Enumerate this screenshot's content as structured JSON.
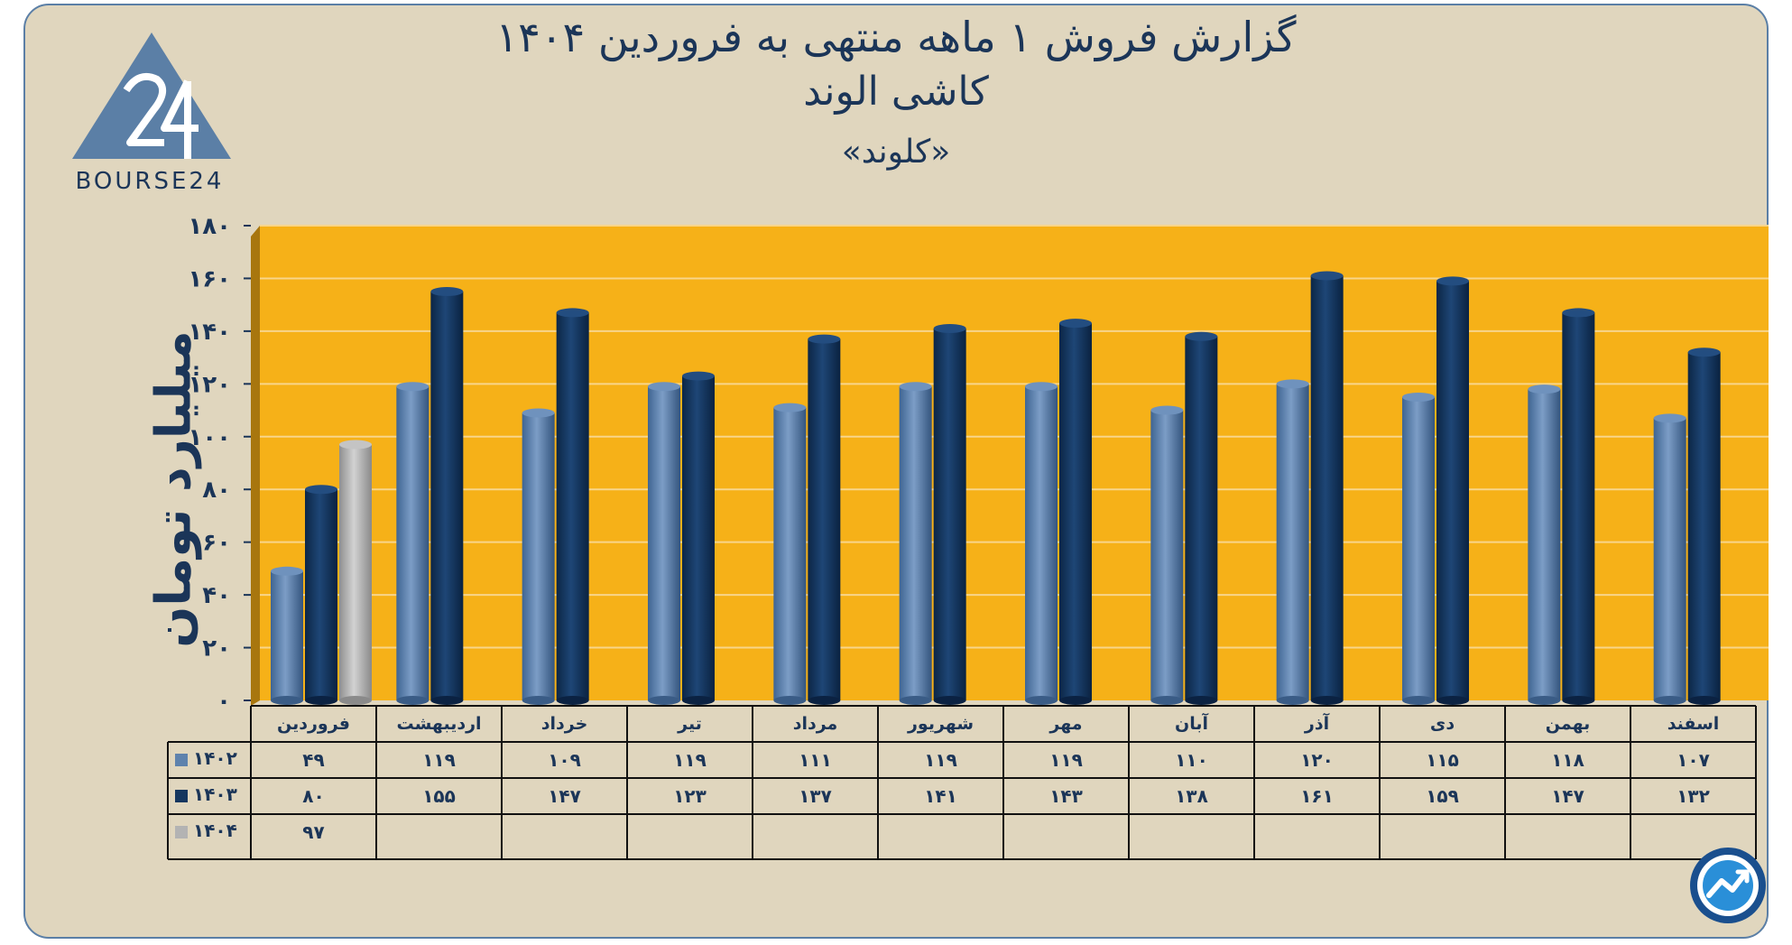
{
  "title_line1": "گزارش  فروش ۱ ماهه منتهی به فروردین ۱۴۰۴",
  "title_line2": "کاشی الوند",
  "title_line3": "«کلوند»",
  "brand": "BOURSE24",
  "colors": {
    "panel_bg": "#e0d6be",
    "plot_bg": "#f6b118",
    "series_1402": "#5e82ad",
    "series_1403": "#14365f",
    "series_1404": "#b3b3b3",
    "text": "#1b3558"
  },
  "icons": [
    "bourse24-logo",
    "trend-chart-icon"
  ],
  "chart_data": {
    "type": "bar",
    "ylabel": "میلیارد تومان",
    "ylim": [
      0,
      180
    ],
    "yticks": [
      "۰",
      "۲۰",
      "۴۰",
      "۶۰",
      "۸۰",
      "۱۰۰",
      "۱۲۰",
      "۱۴۰",
      "۱۶۰",
      "۱۸۰"
    ],
    "grid": true,
    "categories": [
      "فروردین",
      "اردیبهشت",
      "خرداد",
      "تیر",
      "مرداد",
      "شهریور",
      "مهر",
      "آبان",
      "آذر",
      "دی",
      "بهمن",
      "اسفند"
    ],
    "series": [
      {
        "name": "۱۴۰۲",
        "values": [
          49,
          119,
          109,
          119,
          111,
          119,
          119,
          110,
          120,
          115,
          118,
          107
        ],
        "labels": [
          "۴۹",
          "۱۱۹",
          "۱۰۹",
          "۱۱۹",
          "۱۱۱",
          "۱۱۹",
          "۱۱۹",
          "۱۱۰",
          "۱۲۰",
          "۱۱۵",
          "۱۱۸",
          "۱۰۷"
        ]
      },
      {
        "name": "۱۴۰۳",
        "values": [
          80,
          155,
          147,
          123,
          137,
          141,
          143,
          138,
          161,
          159,
          147,
          132
        ],
        "labels": [
          "۸۰",
          "۱۵۵",
          "۱۴۷",
          "۱۲۳",
          "۱۳۷",
          "۱۴۱",
          "۱۴۳",
          "۱۳۸",
          "۱۶۱",
          "۱۵۹",
          "۱۴۷",
          "۱۳۲"
        ]
      },
      {
        "name": "۱۴۰۴",
        "values": [
          97,
          null,
          null,
          null,
          null,
          null,
          null,
          null,
          null,
          null,
          null,
          null
        ],
        "labels": [
          "۹۷",
          "",
          "",
          "",
          "",
          "",
          "",
          "",
          "",
          "",
          "",
          ""
        ]
      }
    ]
  }
}
